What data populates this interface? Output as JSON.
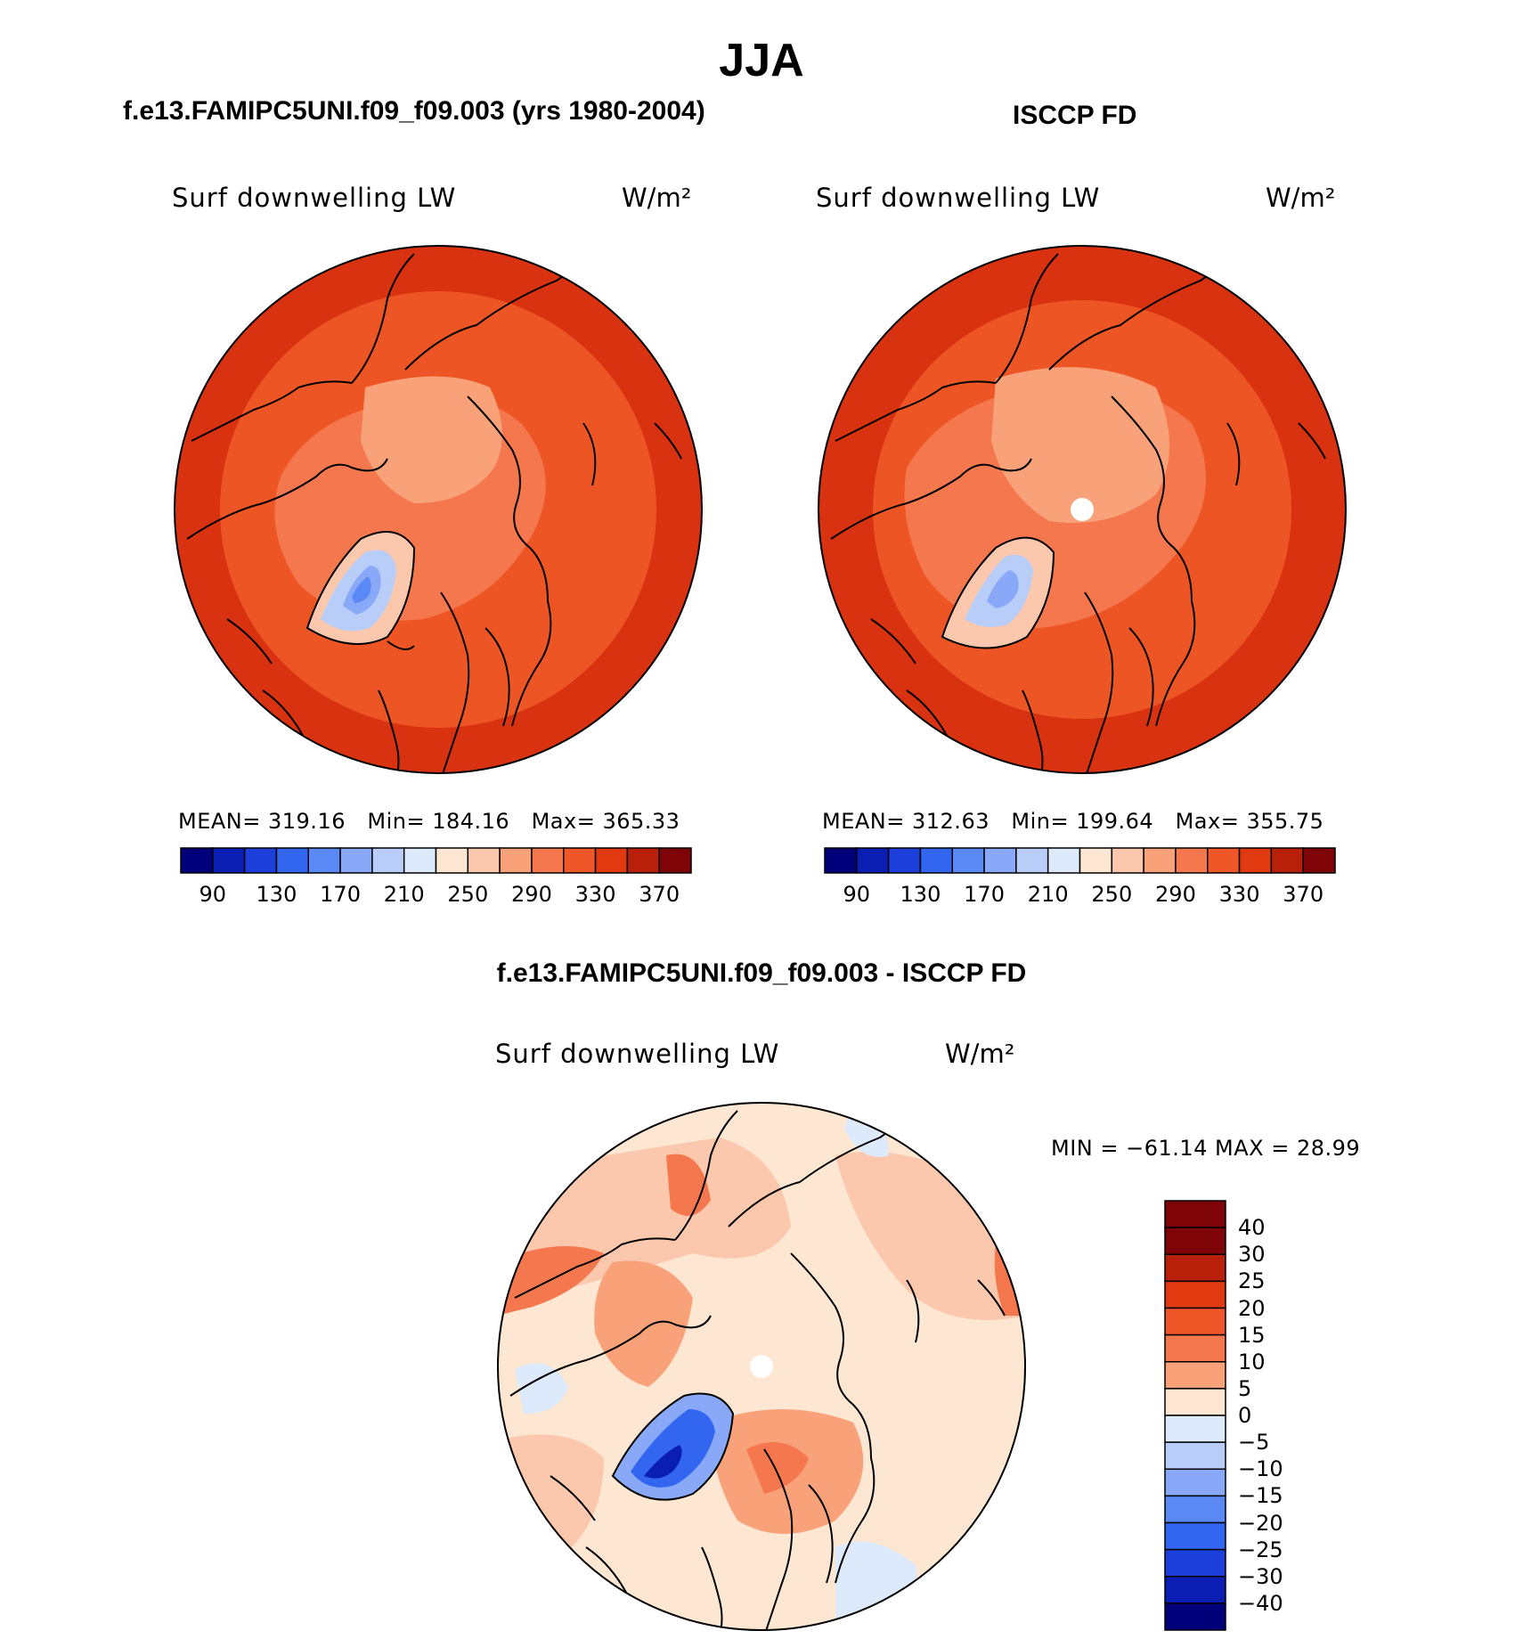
{
  "figure": {
    "title": "JJA",
    "variable": "Surf downwelling LW",
    "units": "W/m²"
  },
  "panels": {
    "model": {
      "title": "f.e13.FAMIPC5UNI.f09_f09.003 (yrs 1980-2004)",
      "variable": "Surf downwelling LW",
      "units": "W/m²",
      "stats": {
        "mean_label": "MEAN=",
        "mean": "319.16",
        "min_label": "Min=",
        "min": "184.16",
        "max_label": "Max=",
        "max": "365.33"
      }
    },
    "obs": {
      "title": "ISCCP FD",
      "variable": "Surf downwelling LW",
      "units": "W/m²",
      "stats": {
        "mean_label": "MEAN=",
        "mean": "312.63",
        "min_label": "Min=",
        "min": "199.64",
        "max_label": "Max=",
        "max": "355.75"
      }
    },
    "diff": {
      "title": "f.e13.FAMIPC5UNI.f09_f09.003 - ISCCP FD",
      "variable": "Surf downwelling LW",
      "units": "W/m²",
      "stats_text": "MIN = −61.14 MAX =   28.99"
    }
  },
  "colorbars": {
    "absolute": {
      "colors": [
        "#00007a",
        "#0a1eb4",
        "#1c3fdc",
        "#3366f0",
        "#5a88f5",
        "#89a9f8",
        "#b9cdf9",
        "#ddeafc",
        "#fde6d2",
        "#fcc8ad",
        "#f9a27a",
        "#f4774d",
        "#ef5628",
        "#e23a10",
        "#b8200a",
        "#7e0407"
      ],
      "tick_labels": [
        "90",
        "130",
        "170",
        "210",
        "250",
        "290",
        "330",
        "370"
      ]
    },
    "difference": {
      "colors": [
        "#7e0407",
        "#b8200a",
        "#e23a10",
        "#ef5628",
        "#f4774d",
        "#f9a27a",
        "#fde6d2",
        "#ddeafc",
        "#b9cdf9",
        "#89a9f8",
        "#5a88f5",
        "#3366f0",
        "#1c3fdc",
        "#0a1eb4",
        "#00007a"
      ],
      "tick_labels": [
        "40",
        "30",
        "25",
        "20",
        "15",
        "10",
        "5",
        "0",
        "−5",
        "−10",
        "−15",
        "−20",
        "−25",
        "−30",
        "−40"
      ]
    }
  },
  "map_colors": {
    "abs_outer": "#d83210",
    "abs_ocean": "#ee5525",
    "abs_shelf": "#f4774d",
    "abs_arctic": "#f9a27a",
    "abs_ice1": "#fcc8ad",
    "abs_ice2": "#b9cdf9",
    "abs_ice3": "#89a9f8",
    "abs_ice4": "#5a88f5",
    "diff_base": "#fde6d2",
    "diff_pos1": "#fcc8ad",
    "diff_pos2": "#f9a27a",
    "diff_pos3": "#f4774d",
    "diff_neg1": "#ddeafc",
    "diff_neg2": "#89a9f8",
    "diff_neg3": "#3366f0",
    "diff_neg4": "#0a1eb4"
  }
}
